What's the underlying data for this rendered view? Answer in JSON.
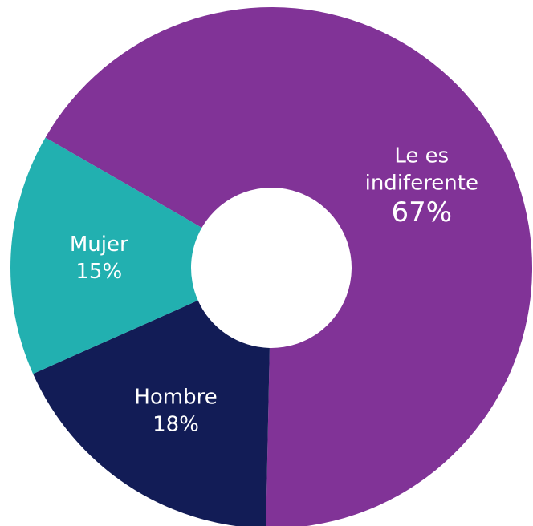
{
  "chart_data": {
    "type": "donut",
    "categories": [
      "Le es indiferente",
      "Hombre",
      "Mujer"
    ],
    "values": [
      67,
      18,
      15
    ],
    "value_labels": [
      "67%",
      "18%",
      "15%"
    ],
    "colors": [
      "#813397",
      "#121c56",
      "#22b0b0"
    ]
  }
}
